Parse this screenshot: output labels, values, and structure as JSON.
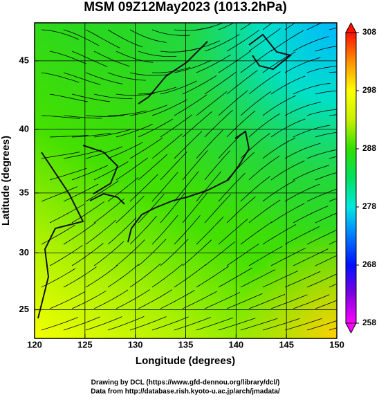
{
  "chart_data": {
    "type": "map",
    "title": "MSM 09Z12May2023 (1013.2hPa)",
    "x_label": "Longitude (degrees)",
    "y_label": "Latitude  (degrees)",
    "projection": "mercator",
    "xlim": [
      120,
      150
    ],
    "ylim": [
      22.4,
      47.6
    ],
    "xticks": [
      120,
      125,
      130,
      135,
      140,
      145,
      150
    ],
    "yticks": [
      25,
      30,
      35,
      40,
      45
    ],
    "grid": true,
    "colorbar": {
      "lim": [
        258,
        308
      ],
      "ticks": [
        258,
        268,
        278,
        288,
        298,
        308
      ]
    }
  },
  "credits": [
    "Drawing by DCL (https://www.gfd-dennou.org/library/dcl/)",
    "Data from http://database.rish.kyoto-u.ac.jp/arch/jmadata/"
  ]
}
